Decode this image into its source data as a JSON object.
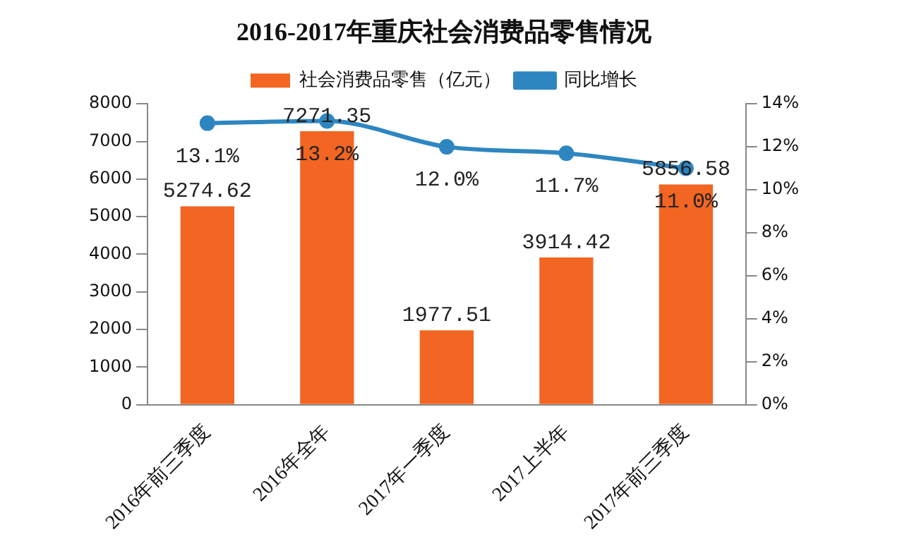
{
  "chart_data": {
    "type": "bar",
    "title": "2016-2017年重庆社会消费品零售情况",
    "categories": [
      "2016年前三季度",
      "2016年全年",
      "2017年一季度",
      "2017上半年",
      "2017年前三季度"
    ],
    "series": [
      {
        "name": "社会消费品零售（亿元）",
        "color": "#f26522",
        "values": [
          5274.62,
          7271.35,
          1977.51,
          3914.42,
          5856.58
        ]
      },
      {
        "name": "同比增长",
        "type": "line",
        "axis": "y2",
        "color": "#2e86c1",
        "values": [
          13.1,
          13.2,
          12.0,
          11.7,
          11.0
        ],
        "value_labels": [
          "13.1%",
          "13.2%",
          "12.0%",
          "11.7%",
          "11.0%"
        ]
      }
    ],
    "data_labels": true,
    "ylim": [
      0,
      8000
    ],
    "yticks": [
      0,
      1000,
      2000,
      3000,
      4000,
      5000,
      6000,
      7000,
      8000
    ],
    "y2lim": [
      0,
      14
    ],
    "y2ticks": [
      {
        "value": 0,
        "label": "0%"
      },
      {
        "value": 2,
        "label": "2%"
      },
      {
        "value": 4,
        "label": "4%"
      },
      {
        "value": 6,
        "label": "6%"
      },
      {
        "value": 8,
        "label": "8%"
      },
      {
        "value": 10,
        "label": "10%"
      },
      {
        "value": 12,
        "label": "12%"
      },
      {
        "value": 14,
        "label": "14%"
      }
    ],
    "grid": false,
    "legend": "top",
    "marker": "circle",
    "line_style": "solid"
  }
}
